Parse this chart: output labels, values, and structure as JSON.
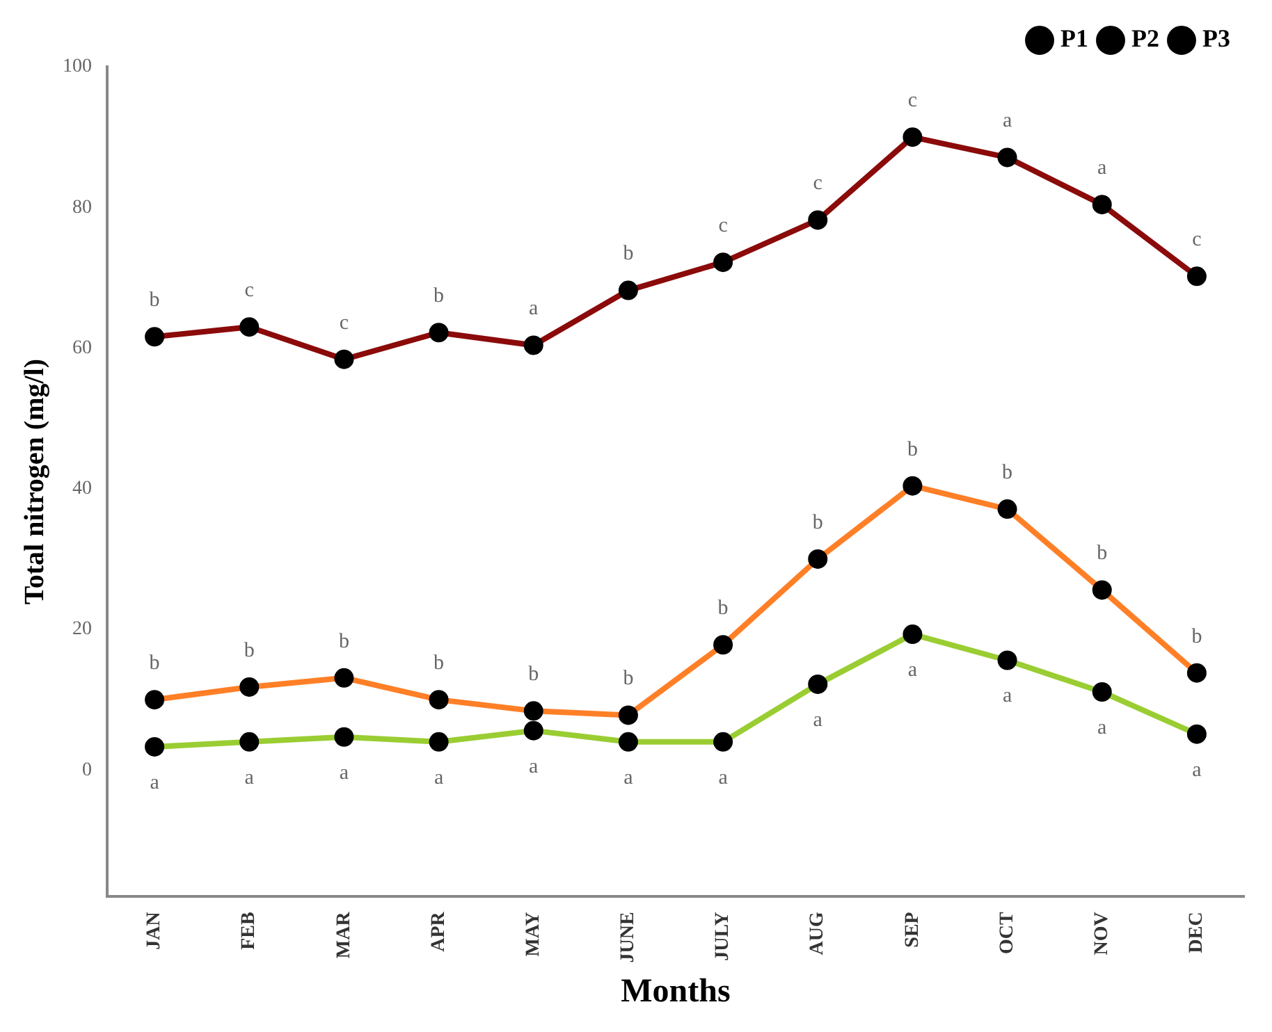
{
  "chart_data": {
    "type": "line",
    "xlabel": "Months",
    "ylabel": "Total nitrogen (mg/l)",
    "categories": [
      "JAN",
      "FEB",
      "MAR",
      "APR",
      "MAY",
      "JUNE",
      "JULY",
      "AUG",
      "SEP",
      "OCT",
      "NOV",
      "DEC"
    ],
    "series": [
      {
        "name": "P1",
        "color": "#8b0a0a",
        "values": [
          61.6,
          63,
          58.4,
          62.2,
          60.4,
          68.2,
          72.2,
          78.2,
          90,
          87.1,
          80.4,
          70.2
        ]
      },
      {
        "name": "P2",
        "color": "#ff7f27",
        "values": [
          10,
          11.8,
          13.1,
          10,
          8.4,
          7.8,
          17.8,
          30,
          40.4,
          37.1,
          25.6,
          13.8
        ]
      },
      {
        "name": "P3",
        "color": "#9acd32",
        "values": [
          3.3,
          4,
          4.7,
          4,
          5.6,
          4,
          4,
          12.2,
          19.3,
          15.6,
          11.1,
          5.1
        ]
      }
    ],
    "ylim": [
      -18,
      100
    ],
    "yticks": [
      0,
      20,
      40,
      60,
      80,
      100
    ],
    "grid": false,
    "legend": "top right",
    "marker": "circle",
    "line_style": "solid",
    "annotations": [
      {
        "text": "b",
        "x": "JAN",
        "y": 61.6
      },
      {
        "text": "c",
        "x": "FEB",
        "y": 63
      },
      {
        "text": "c",
        "x": "MAR",
        "y": 58.4
      },
      {
        "text": "b",
        "x": "APR",
        "y": 62.2
      },
      {
        "text": "a",
        "x": "MAY",
        "y": 60.4
      },
      {
        "text": "b",
        "x": "JUNE",
        "y": 68.2
      },
      {
        "text": "c",
        "x": "JULY",
        "y": 72.2
      },
      {
        "text": "c",
        "x": "AUG",
        "y": 78.2
      },
      {
        "text": "c",
        "x": "SEP",
        "y": 90
      },
      {
        "text": "a",
        "x": "OCT",
        "y": 87.1
      },
      {
        "text": "a",
        "x": "NOV",
        "y": 80.4
      },
      {
        "text": "c",
        "x": "DEC",
        "y": 70.2
      },
      {
        "text": "b",
        "x": "JAN",
        "y": 10
      },
      {
        "text": "b",
        "x": "FEB",
        "y": 11.8
      },
      {
        "text": "b",
        "x": "MAR",
        "y": 13.1
      },
      {
        "text": "b",
        "x": "APR",
        "y": 10
      },
      {
        "text": "b",
        "x": "MAY",
        "y": 8.4
      },
      {
        "text": "b",
        "x": "JUNE",
        "y": 7.8
      },
      {
        "text": "b",
        "x": "JULY",
        "y": 17.8
      },
      {
        "text": "b",
        "x": "AUG",
        "y": 30
      },
      {
        "text": "b",
        "x": "SEP",
        "y": 40.4
      },
      {
        "text": "b",
        "x": "OCT",
        "y": 37.1
      },
      {
        "text": "b",
        "x": "NOV",
        "y": 25.6
      },
      {
        "text": "b",
        "x": "DEC",
        "y": 13.8
      },
      {
        "text": "a",
        "x": "JAN",
        "y": 3.3
      },
      {
        "text": "a",
        "x": "FEB",
        "y": 4
      },
      {
        "text": "a",
        "x": "MAR",
        "y": 4.7
      },
      {
        "text": "a",
        "x": "APR",
        "y": 4
      },
      {
        "text": "a",
        "x": "MAY",
        "y": 5.6
      },
      {
        "text": "a",
        "x": "JUNE",
        "y": 4
      },
      {
        "text": "a",
        "x": "JULY",
        "y": 4
      },
      {
        "text": "a",
        "x": "AUG",
        "y": 12.2
      },
      {
        "text": "a",
        "x": "SEP",
        "y": 19.3
      },
      {
        "text": "a",
        "x": "OCT",
        "y": 15.6
      },
      {
        "text": "a",
        "x": "NOV",
        "y": 11.1
      },
      {
        "text": "a",
        "x": "DEC",
        "y": 5.1
      }
    ]
  }
}
